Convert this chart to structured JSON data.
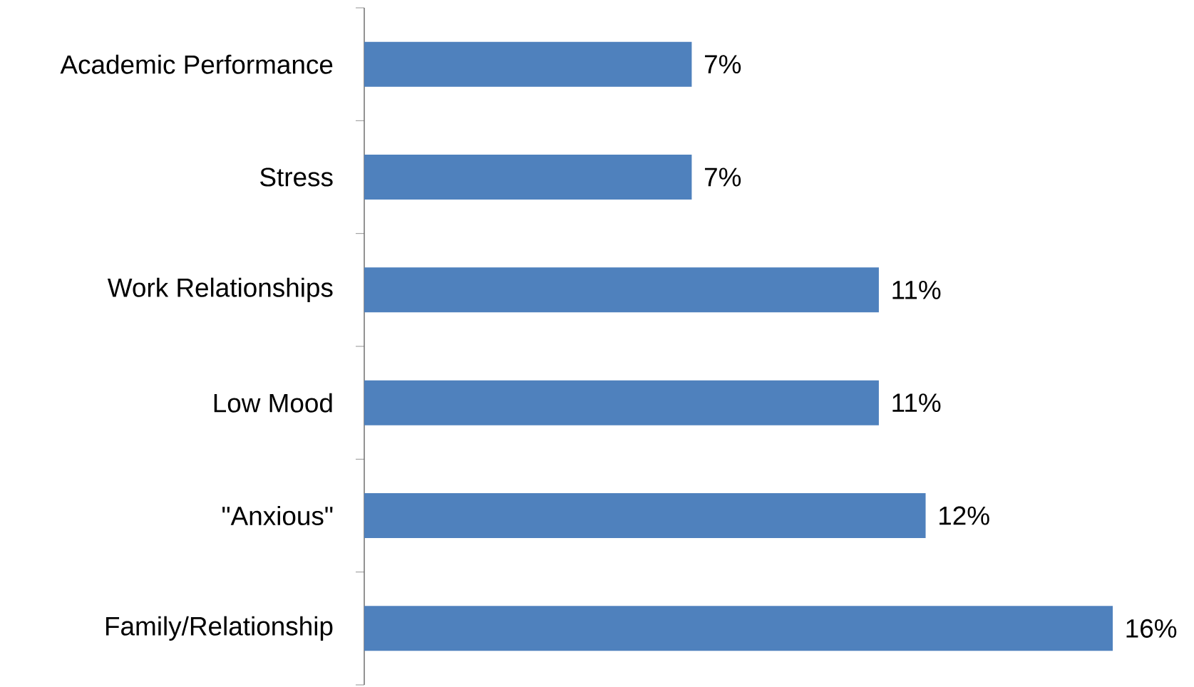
{
  "chart_data": {
    "type": "bar",
    "orientation": "horizontal",
    "categories": [
      "Academic Performance",
      "Stress",
      "Work Relationships",
      "Low Mood",
      "\"Anxious\"",
      "Family/Relationship"
    ],
    "values": [
      7,
      7,
      11,
      11,
      12,
      16
    ],
    "value_labels": [
      "7%",
      "7%",
      "11%",
      "11%",
      "12%",
      "16%"
    ],
    "color": "#4f81bd",
    "xlim": [
      0,
      16
    ]
  }
}
